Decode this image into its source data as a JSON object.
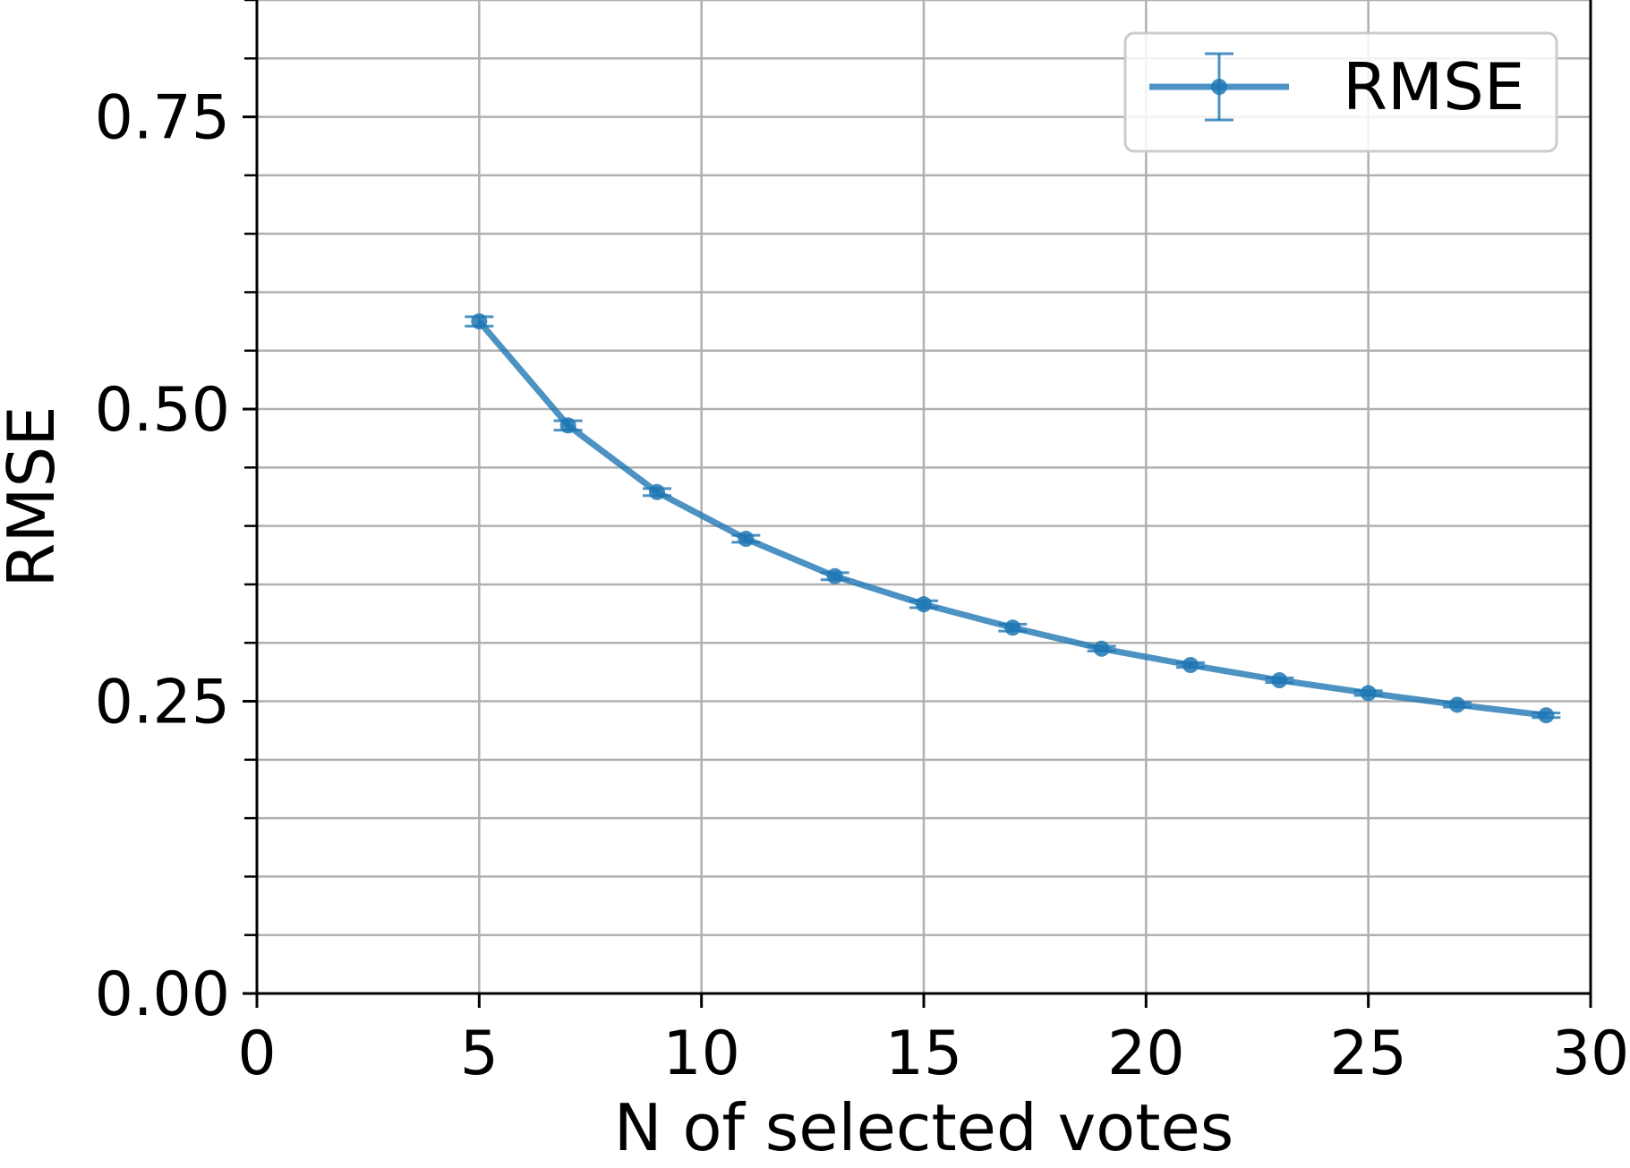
{
  "chart_data": {
    "type": "line",
    "title": "",
    "xlabel": "N of selected votes",
    "ylabel": "RMSE",
    "xlim": [
      0,
      30
    ],
    "ylim": [
      0,
      0.85
    ],
    "xticks": [
      0,
      5,
      10,
      15,
      20,
      25,
      30
    ],
    "xtick_labels": [
      "0",
      "5",
      "10",
      "15",
      "20",
      "25",
      "30"
    ],
    "yticks": [
      0,
      0.25,
      0.5,
      0.75
    ],
    "ytick_labels": [
      "0.00",
      "0.25",
      "0.50",
      "0.75"
    ],
    "y_minor_step": 0.05,
    "grid": true,
    "legend_position": "upper right",
    "series": [
      {
        "name": "RMSE",
        "color": "#1f77b4",
        "error_bars": true,
        "x": [
          5,
          7,
          9,
          11,
          13,
          15,
          17,
          19,
          21,
          23,
          25,
          27,
          29
        ],
        "y": [
          0.575,
          0.486,
          0.429,
          0.389,
          0.357,
          0.333,
          0.313,
          0.295,
          0.281,
          0.268,
          0.257,
          0.247,
          0.238
        ],
        "yerr": [
          0.004,
          0.004,
          0.003,
          0.003,
          0.003,
          0.003,
          0.003,
          0.002,
          0.002,
          0.002,
          0.002,
          0.002,
          0.002
        ]
      }
    ]
  }
}
